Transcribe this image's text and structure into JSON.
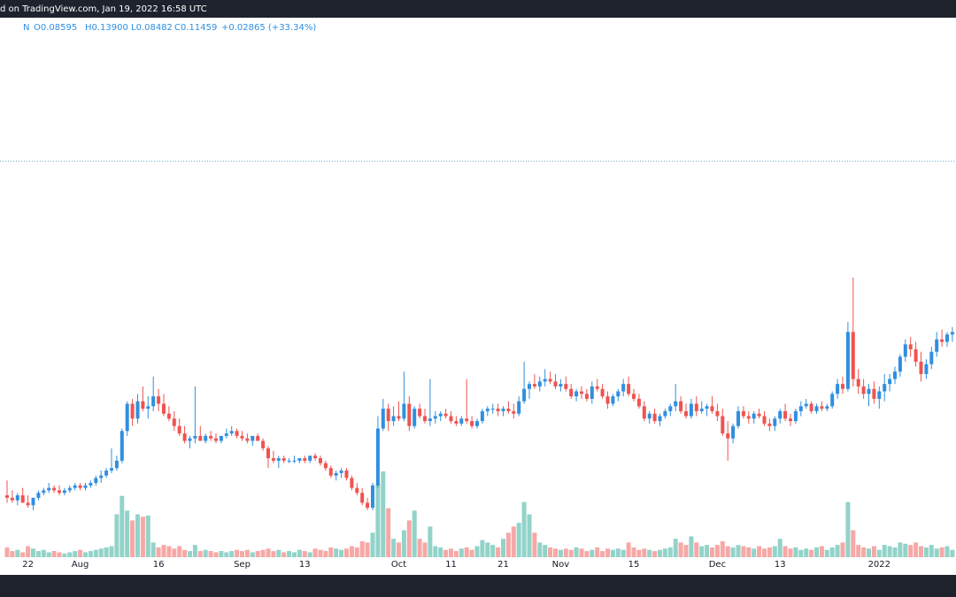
{
  "chart_data": {
    "type": "candlestick",
    "title": "d on TradingView.com, Jan 19, 2022 16:58 UTC",
    "legend_items": [
      "N",
      "O0.08595",
      "H0.13900",
      "L0.08482",
      "C0.11459",
      "+0.02865 (+33.34%)"
    ],
    "up_color": "#2f8fe0",
    "down_color": "#ef5350",
    "volume_up_color": "#92d3c9",
    "volume_down_color": "#f6a8a6",
    "ylim": [
      0.025,
      0.243
    ],
    "price_line": 0.185,
    "xticks": [
      {
        "value": 4,
        "label": "22"
      },
      {
        "value": 14,
        "label": "Aug"
      },
      {
        "value": 29,
        "label": "16"
      },
      {
        "value": 45,
        "label": "Sep"
      },
      {
        "value": 57,
        "label": "13"
      },
      {
        "value": 75,
        "label": "Oct"
      },
      {
        "value": 85,
        "label": "11"
      },
      {
        "value": 95,
        "label": "21"
      },
      {
        "value": 106,
        "label": "Nov"
      },
      {
        "value": 120,
        "label": "15"
      },
      {
        "value": 136,
        "label": "Dec"
      },
      {
        "value": 148,
        "label": "13"
      },
      {
        "value": 167,
        "label": "2022"
      }
    ],
    "candles": [
      [
        0.05,
        0.056,
        0.047,
        0.049
      ],
      [
        0.049,
        0.052,
        0.047,
        0.048
      ],
      [
        0.048,
        0.051,
        0.046,
        0.05
      ],
      [
        0.05,
        0.053,
        0.048,
        0.047
      ],
      [
        0.047,
        0.05,
        0.045,
        0.046
      ],
      [
        0.046,
        0.049,
        0.044,
        0.049
      ],
      [
        0.049,
        0.052,
        0.048,
        0.051
      ],
      [
        0.051,
        0.053,
        0.05,
        0.052
      ],
      [
        0.052,
        0.055,
        0.051,
        0.053
      ],
      [
        0.053,
        0.054,
        0.051,
        0.052
      ],
      [
        0.052,
        0.054,
        0.05,
        0.051
      ],
      [
        0.051,
        0.053,
        0.05,
        0.052
      ],
      [
        0.052,
        0.054,
        0.051,
        0.053
      ],
      [
        0.053,
        0.055,
        0.052,
        0.054
      ],
      [
        0.054,
        0.055,
        0.052,
        0.053
      ],
      [
        0.053,
        0.055,
        0.052,
        0.054
      ],
      [
        0.054,
        0.056,
        0.053,
        0.055
      ],
      [
        0.055,
        0.058,
        0.054,
        0.057
      ],
      [
        0.057,
        0.06,
        0.055,
        0.058
      ],
      [
        0.058,
        0.061,
        0.057,
        0.06
      ],
      [
        0.06,
        0.069,
        0.059,
        0.061
      ],
      [
        0.061,
        0.066,
        0.06,
        0.064
      ],
      [
        0.064,
        0.077,
        0.063,
        0.076
      ],
      [
        0.076,
        0.088,
        0.074,
        0.087
      ],
      [
        0.087,
        0.089,
        0.078,
        0.081
      ],
      [
        0.081,
        0.091,
        0.079,
        0.088
      ],
      [
        0.088,
        0.094,
        0.084,
        0.085
      ],
      [
        0.085,
        0.09,
        0.081,
        0.086
      ],
      [
        0.086,
        0.098,
        0.084,
        0.09
      ],
      [
        0.09,
        0.093,
        0.084,
        0.087
      ],
      [
        0.087,
        0.091,
        0.082,
        0.083
      ],
      [
        0.083,
        0.086,
        0.08,
        0.081
      ],
      [
        0.081,
        0.084,
        0.076,
        0.078
      ],
      [
        0.078,
        0.081,
        0.074,
        0.075
      ],
      [
        0.075,
        0.078,
        0.071,
        0.072
      ],
      [
        0.072,
        0.074,
        0.069,
        0.073
      ],
      [
        0.073,
        0.094,
        0.071,
        0.074
      ],
      [
        0.074,
        0.078,
        0.072,
        0.072
      ],
      [
        0.072,
        0.075,
        0.071,
        0.074
      ],
      [
        0.074,
        0.076,
        0.072,
        0.073
      ],
      [
        0.073,
        0.075,
        0.071,
        0.072
      ],
      [
        0.072,
        0.074,
        0.071,
        0.074
      ],
      [
        0.074,
        0.077,
        0.073,
        0.075
      ],
      [
        0.075,
        0.078,
        0.074,
        0.076
      ],
      [
        0.076,
        0.077,
        0.073,
        0.074
      ],
      [
        0.074,
        0.076,
        0.072,
        0.073
      ],
      [
        0.073,
        0.075,
        0.071,
        0.072
      ],
      [
        0.072,
        0.074,
        0.07,
        0.074
      ],
      [
        0.074,
        0.075,
        0.072,
        0.072
      ],
      [
        0.072,
        0.073,
        0.068,
        0.069
      ],
      [
        0.069,
        0.07,
        0.061,
        0.065
      ],
      [
        0.065,
        0.068,
        0.063,
        0.064
      ],
      [
        0.064,
        0.066,
        0.061,
        0.065
      ],
      [
        0.065,
        0.066,
        0.063,
        0.064
      ],
      [
        0.064,
        0.065,
        0.063,
        0.064
      ],
      [
        0.064,
        0.066,
        0.063,
        0.064
      ],
      [
        0.064,
        0.065,
        0.063,
        0.065
      ],
      [
        0.065,
        0.066,
        0.063,
        0.064
      ],
      [
        0.064,
        0.066,
        0.063,
        0.066
      ],
      [
        0.066,
        0.067,
        0.064,
        0.065
      ],
      [
        0.065,
        0.066,
        0.062,
        0.063
      ],
      [
        0.063,
        0.064,
        0.06,
        0.061
      ],
      [
        0.061,
        0.062,
        0.057,
        0.058
      ],
      [
        0.058,
        0.06,
        0.056,
        0.059
      ],
      [
        0.059,
        0.061,
        0.057,
        0.06
      ],
      [
        0.06,
        0.061,
        0.056,
        0.057
      ],
      [
        0.057,
        0.058,
        0.052,
        0.053
      ],
      [
        0.053,
        0.055,
        0.05,
        0.051
      ],
      [
        0.051,
        0.053,
        0.046,
        0.047
      ],
      [
        0.047,
        0.049,
        0.044,
        0.045
      ],
      [
        0.045,
        0.055,
        0.044,
        0.054
      ],
      [
        0.054,
        0.082,
        0.053,
        0.077
      ],
      [
        0.077,
        0.089,
        0.076,
        0.085
      ],
      [
        0.085,
        0.087,
        0.076,
        0.08
      ],
      [
        0.08,
        0.086,
        0.078,
        0.082
      ],
      [
        0.082,
        0.088,
        0.08,
        0.081
      ],
      [
        0.081,
        0.1,
        0.08,
        0.087
      ],
      [
        0.087,
        0.09,
        0.076,
        0.078
      ],
      [
        0.078,
        0.086,
        0.077,
        0.085
      ],
      [
        0.085,
        0.087,
        0.081,
        0.082
      ],
      [
        0.082,
        0.085,
        0.079,
        0.08
      ],
      [
        0.08,
        0.097,
        0.078,
        0.081
      ],
      [
        0.081,
        0.084,
        0.079,
        0.082
      ],
      [
        0.082,
        0.084,
        0.08,
        0.083
      ],
      [
        0.083,
        0.085,
        0.081,
        0.082
      ],
      [
        0.082,
        0.084,
        0.079,
        0.08
      ],
      [
        0.08,
        0.082,
        0.078,
        0.079
      ],
      [
        0.079,
        0.082,
        0.078,
        0.081
      ],
      [
        0.081,
        0.097,
        0.079,
        0.08
      ],
      [
        0.08,
        0.082,
        0.077,
        0.078
      ],
      [
        0.078,
        0.081,
        0.077,
        0.08
      ],
      [
        0.08,
        0.085,
        0.079,
        0.084
      ],
      [
        0.084,
        0.086,
        0.082,
        0.085
      ],
      [
        0.085,
        0.087,
        0.083,
        0.085
      ],
      [
        0.085,
        0.087,
        0.082,
        0.084
      ],
      [
        0.084,
        0.086,
        0.082,
        0.085
      ],
      [
        0.085,
        0.088,
        0.083,
        0.084
      ],
      [
        0.084,
        0.087,
        0.081,
        0.083
      ],
      [
        0.083,
        0.09,
        0.082,
        0.088
      ],
      [
        0.088,
        0.104,
        0.087,
        0.093
      ],
      [
        0.093,
        0.096,
        0.089,
        0.095
      ],
      [
        0.095,
        0.099,
        0.093,
        0.094
      ],
      [
        0.094,
        0.098,
        0.092,
        0.096
      ],
      [
        0.096,
        0.101,
        0.094,
        0.097
      ],
      [
        0.097,
        0.1,
        0.095,
        0.096
      ],
      [
        0.096,
        0.099,
        0.093,
        0.094
      ],
      [
        0.094,
        0.097,
        0.092,
        0.095
      ],
      [
        0.095,
        0.098,
        0.092,
        0.093
      ],
      [
        0.093,
        0.095,
        0.089,
        0.09
      ],
      [
        0.09,
        0.093,
        0.088,
        0.092
      ],
      [
        0.092,
        0.094,
        0.089,
        0.091
      ],
      [
        0.091,
        0.093,
        0.088,
        0.089
      ],
      [
        0.089,
        0.096,
        0.087,
        0.094
      ],
      [
        0.094,
        0.097,
        0.092,
        0.093
      ],
      [
        0.093,
        0.095,
        0.089,
        0.09
      ],
      [
        0.09,
        0.092,
        0.085,
        0.087
      ],
      [
        0.087,
        0.091,
        0.086,
        0.09
      ],
      [
        0.09,
        0.093,
        0.088,
        0.092
      ],
      [
        0.092,
        0.097,
        0.09,
        0.095
      ],
      [
        0.095,
        0.098,
        0.09,
        0.091
      ],
      [
        0.091,
        0.093,
        0.088,
        0.089
      ],
      [
        0.089,
        0.091,
        0.085,
        0.086
      ],
      [
        0.086,
        0.088,
        0.08,
        0.081
      ],
      [
        0.081,
        0.084,
        0.079,
        0.083
      ],
      [
        0.083,
        0.085,
        0.079,
        0.08
      ],
      [
        0.08,
        0.083,
        0.078,
        0.082
      ],
      [
        0.082,
        0.085,
        0.081,
        0.084
      ],
      [
        0.084,
        0.087,
        0.082,
        0.086
      ],
      [
        0.086,
        0.095,
        0.084,
        0.088
      ],
      [
        0.088,
        0.09,
        0.083,
        0.084
      ],
      [
        0.084,
        0.087,
        0.081,
        0.082
      ],
      [
        0.082,
        0.089,
        0.081,
        0.087
      ],
      [
        0.087,
        0.09,
        0.082,
        0.084
      ],
      [
        0.084,
        0.088,
        0.083,
        0.085
      ],
      [
        0.085,
        0.087,
        0.082,
        0.086
      ],
      [
        0.086,
        0.09,
        0.083,
        0.084
      ],
      [
        0.084,
        0.087,
        0.08,
        0.082
      ],
      [
        0.082,
        0.085,
        0.074,
        0.075
      ],
      [
        0.075,
        0.08,
        0.064,
        0.073
      ],
      [
        0.073,
        0.079,
        0.071,
        0.078
      ],
      [
        0.078,
        0.086,
        0.077,
        0.084
      ],
      [
        0.084,
        0.086,
        0.081,
        0.082
      ],
      [
        0.082,
        0.084,
        0.079,
        0.081
      ],
      [
        0.081,
        0.084,
        0.079,
        0.083
      ],
      [
        0.083,
        0.085,
        0.081,
        0.082
      ],
      [
        0.082,
        0.084,
        0.078,
        0.079
      ],
      [
        0.079,
        0.081,
        0.076,
        0.078
      ],
      [
        0.078,
        0.082,
        0.076,
        0.081
      ],
      [
        0.081,
        0.085,
        0.079,
        0.084
      ],
      [
        0.084,
        0.087,
        0.08,
        0.081
      ],
      [
        0.081,
        0.083,
        0.078,
        0.08
      ],
      [
        0.08,
        0.085,
        0.079,
        0.084
      ],
      [
        0.084,
        0.088,
        0.082,
        0.086
      ],
      [
        0.086,
        0.089,
        0.085,
        0.087
      ],
      [
        0.087,
        0.088,
        0.083,
        0.084
      ],
      [
        0.084,
        0.087,
        0.083,
        0.086
      ],
      [
        0.086,
        0.088,
        0.084,
        0.085
      ],
      [
        0.085,
        0.087,
        0.084,
        0.086
      ],
      [
        0.086,
        0.092,
        0.085,
        0.091
      ],
      [
        0.091,
        0.097,
        0.089,
        0.095
      ],
      [
        0.095,
        0.098,
        0.091,
        0.093
      ],
      [
        0.093,
        0.12,
        0.092,
        0.116
      ],
      [
        0.116,
        0.138,
        0.094,
        0.097
      ],
      [
        0.097,
        0.101,
        0.091,
        0.094
      ],
      [
        0.094,
        0.097,
        0.089,
        0.091
      ],
      [
        0.091,
        0.095,
        0.086,
        0.093
      ],
      [
        0.093,
        0.096,
        0.087,
        0.089
      ],
      [
        0.089,
        0.094,
        0.085,
        0.092
      ],
      [
        0.092,
        0.099,
        0.088,
        0.095
      ],
      [
        0.095,
        0.099,
        0.092,
        0.097
      ],
      [
        0.097,
        0.102,
        0.095,
        0.1
      ],
      [
        0.1,
        0.107,
        0.098,
        0.106
      ],
      [
        0.106,
        0.113,
        0.104,
        0.111
      ],
      [
        0.111,
        0.114,
        0.106,
        0.109
      ],
      [
        0.109,
        0.112,
        0.102,
        0.104
      ],
      [
        0.104,
        0.108,
        0.096,
        0.099
      ],
      [
        0.099,
        0.105,
        0.097,
        0.103
      ],
      [
        0.103,
        0.11,
        0.101,
        0.108
      ],
      [
        0.108,
        0.116,
        0.106,
        0.113
      ],
      [
        0.113,
        0.117,
        0.11,
        0.112
      ],
      [
        0.112,
        0.116,
        0.11,
        0.115
      ],
      [
        0.115,
        0.118,
        0.112,
        0.116
      ]
    ],
    "volume": [
      8,
      5,
      6,
      4,
      9,
      7,
      5,
      6,
      4,
      5,
      4,
      3,
      4,
      5,
      6,
      4,
      5,
      6,
      7,
      8,
      9,
      35,
      50,
      38,
      30,
      35,
      33,
      34,
      12,
      8,
      10,
      9,
      7,
      9,
      6,
      5,
      10,
      5,
      6,
      5,
      4,
      5,
      4,
      5,
      6,
      5,
      6,
      4,
      5,
      6,
      7,
      5,
      6,
      4,
      5,
      4,
      6,
      5,
      4,
      7,
      6,
      5,
      8,
      7,
      6,
      7,
      9,
      8,
      13,
      12,
      20,
      60,
      70,
      40,
      15,
      12,
      22,
      30,
      38,
      15,
      12,
      25,
      9,
      8,
      6,
      7,
      5,
      7,
      8,
      6,
      9,
      14,
      12,
      10,
      8,
      15,
      20,
      25,
      28,
      45,
      35,
      20,
      12,
      10,
      8,
      7,
      6,
      7,
      6,
      8,
      7,
      5,
      6,
      8,
      5,
      7,
      6,
      7,
      6,
      12,
      8,
      6,
      7,
      6,
      5,
      6,
      7,
      8,
      15,
      12,
      10,
      17,
      12,
      9,
      10,
      8,
      10,
      13,
      9,
      8,
      10,
      9,
      8,
      7,
      9,
      7,
      8,
      9,
      15,
      9,
      7,
      8,
      6,
      7,
      6,
      8,
      9,
      6,
      8,
      10,
      12,
      45,
      22,
      10,
      8,
      7,
      9,
      6,
      10,
      9,
      8,
      12,
      11,
      10,
      12,
      9,
      8,
      10,
      7,
      8,
      9,
      6
    ]
  }
}
